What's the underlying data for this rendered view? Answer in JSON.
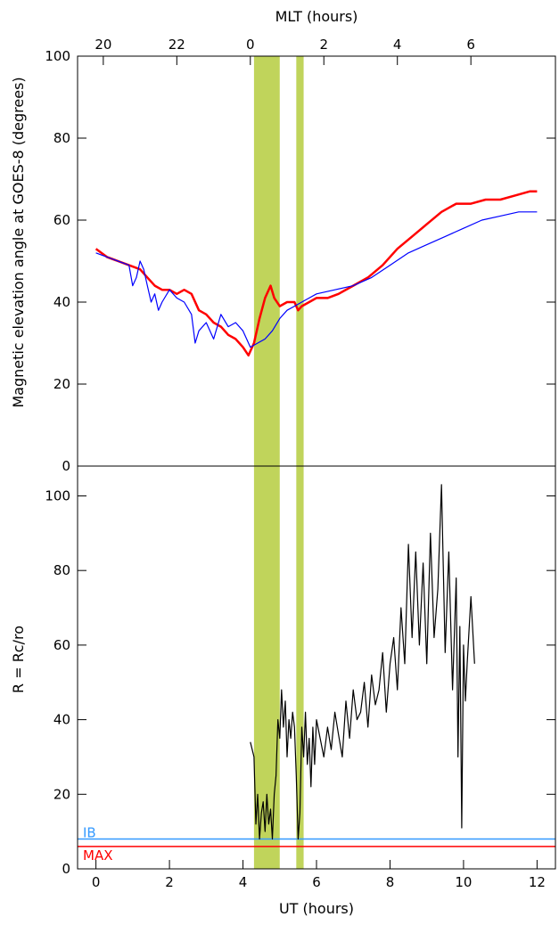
{
  "chart_data": [
    {
      "type": "line",
      "panel": "top",
      "top_axis_label": "MLT (hours)",
      "top_ticks": [
        "20",
        "22",
        "0",
        "2",
        "4",
        "6"
      ],
      "ylabel": "Magnetic elevation angle at GOES-8  (degrees)",
      "xlim": [
        -0.5,
        12.5
      ],
      "ylim": [
        0,
        100
      ],
      "yticks": [
        0,
        20,
        40,
        60,
        80,
        100
      ],
      "highlight_bands": [
        [
          4.3,
          5.0
        ],
        [
          5.45,
          5.65
        ]
      ],
      "highlight_color": "#b5cc3e",
      "series": [
        {
          "color": "#ff0000",
          "x": [
            0.0,
            0.3,
            0.6,
            0.9,
            1.2,
            1.4,
            1.6,
            1.8,
            2.0,
            2.2,
            2.4,
            2.6,
            2.8,
            3.0,
            3.2,
            3.4,
            3.6,
            3.8,
            4.0,
            4.15,
            4.3,
            4.45,
            4.6,
            4.75,
            4.85,
            5.0,
            5.2,
            5.4,
            5.5,
            5.6,
            5.8,
            6.0,
            6.3,
            6.6,
            7.0,
            7.4,
            7.8,
            8.2,
            8.6,
            9.0,
            9.4,
            9.8,
            10.2,
            10.6,
            11.0,
            11.4,
            11.8,
            12.0
          ],
          "y": [
            53,
            51,
            50,
            49,
            48,
            46,
            44,
            43,
            43,
            42,
            43,
            42,
            38,
            37,
            35,
            34,
            32,
            31,
            29,
            27,
            30,
            36,
            41,
            44,
            41,
            39,
            40,
            40,
            38,
            39,
            40,
            41,
            41,
            42,
            44,
            46,
            49,
            53,
            56,
            59,
            62,
            64,
            64,
            65,
            65,
            66,
            67,
            67
          ]
        },
        {
          "color": "#0000ff",
          "x": [
            0.0,
            0.3,
            0.6,
            0.9,
            1.0,
            1.1,
            1.2,
            1.3,
            1.4,
            1.5,
            1.6,
            1.7,
            1.8,
            2.0,
            2.2,
            2.4,
            2.6,
            2.7,
            2.8,
            3.0,
            3.2,
            3.4,
            3.6,
            3.8,
            4.0,
            4.2,
            4.4,
            4.6,
            4.8,
            5.0,
            5.2,
            5.4,
            5.6,
            5.8,
            6.0,
            6.5,
            7.0,
            7.5,
            8.0,
            8.5,
            9.0,
            9.5,
            10.0,
            10.5,
            11.0,
            11.5,
            12.0
          ],
          "y": [
            52,
            51,
            50,
            49,
            44,
            46,
            50,
            48,
            44,
            40,
            42,
            38,
            40,
            43,
            41,
            40,
            37,
            30,
            33,
            35,
            31,
            37,
            34,
            35,
            33,
            29,
            30,
            31,
            33,
            36,
            38,
            39,
            40,
            41,
            42,
            43,
            44,
            46,
            49,
            52,
            54,
            56,
            58,
            60,
            61,
            62,
            62
          ]
        }
      ]
    },
    {
      "type": "line",
      "panel": "bottom",
      "xlabel": "UT (hours)",
      "ylabel": "R = Rc/ro",
      "xlim": [
        -0.5,
        12.5
      ],
      "ylim": [
        0,
        108
      ],
      "xticks": [
        0,
        2,
        4,
        6,
        8,
        10,
        12
      ],
      "yticks": [
        0,
        20,
        40,
        60,
        80,
        100
      ],
      "highlight_bands": [
        [
          4.3,
          5.0
        ],
        [
          5.45,
          5.65
        ]
      ],
      "series": [
        {
          "color": "#000000",
          "x": [
            4.2,
            4.3,
            4.35,
            4.4,
            4.45,
            4.5,
            4.55,
            4.6,
            4.65,
            4.7,
            4.75,
            4.8,
            4.85,
            4.9,
            4.95,
            5.0,
            5.05,
            5.1,
            5.15,
            5.2,
            5.25,
            5.3,
            5.35,
            5.4,
            5.45,
            5.5,
            5.55,
            5.6,
            5.65,
            5.7,
            5.75,
            5.8,
            5.85,
            5.9,
            5.95,
            6.0,
            6.1,
            6.2,
            6.3,
            6.4,
            6.5,
            6.6,
            6.7,
            6.8,
            6.9,
            7.0,
            7.1,
            7.2,
            7.3,
            7.4,
            7.5,
            7.6,
            7.7,
            7.8,
            7.9,
            8.0,
            8.1,
            8.2,
            8.3,
            8.4,
            8.5,
            8.6,
            8.7,
            8.8,
            8.9,
            9.0,
            9.1,
            9.2,
            9.3,
            9.4,
            9.5,
            9.6,
            9.7,
            9.8,
            9.85,
            9.9,
            9.95,
            10.0,
            10.05,
            10.1,
            10.2,
            10.3
          ],
          "y": [
            34,
            30,
            12,
            20,
            8,
            15,
            18,
            10,
            20,
            12,
            16,
            8,
            20,
            25,
            40,
            35,
            48,
            38,
            45,
            30,
            40,
            35,
            42,
            38,
            25,
            8,
            15,
            38,
            30,
            42,
            28,
            35,
            22,
            38,
            28,
            40,
            35,
            30,
            38,
            32,
            42,
            36,
            30,
            45,
            35,
            48,
            40,
            42,
            50,
            38,
            52,
            44,
            48,
            58,
            42,
            55,
            62,
            48,
            70,
            55,
            87,
            62,
            85,
            60,
            82,
            55,
            90,
            62,
            75,
            103,
            58,
            85,
            48,
            78,
            30,
            65,
            11,
            60,
            45,
            55,
            73,
            55
          ]
        }
      ],
      "reference_lines": [
        {
          "label": "IB",
          "y": 8,
          "color": "#3399ff"
        },
        {
          "label": "MAX",
          "y": 6,
          "color": "#ff0000"
        }
      ]
    }
  ]
}
